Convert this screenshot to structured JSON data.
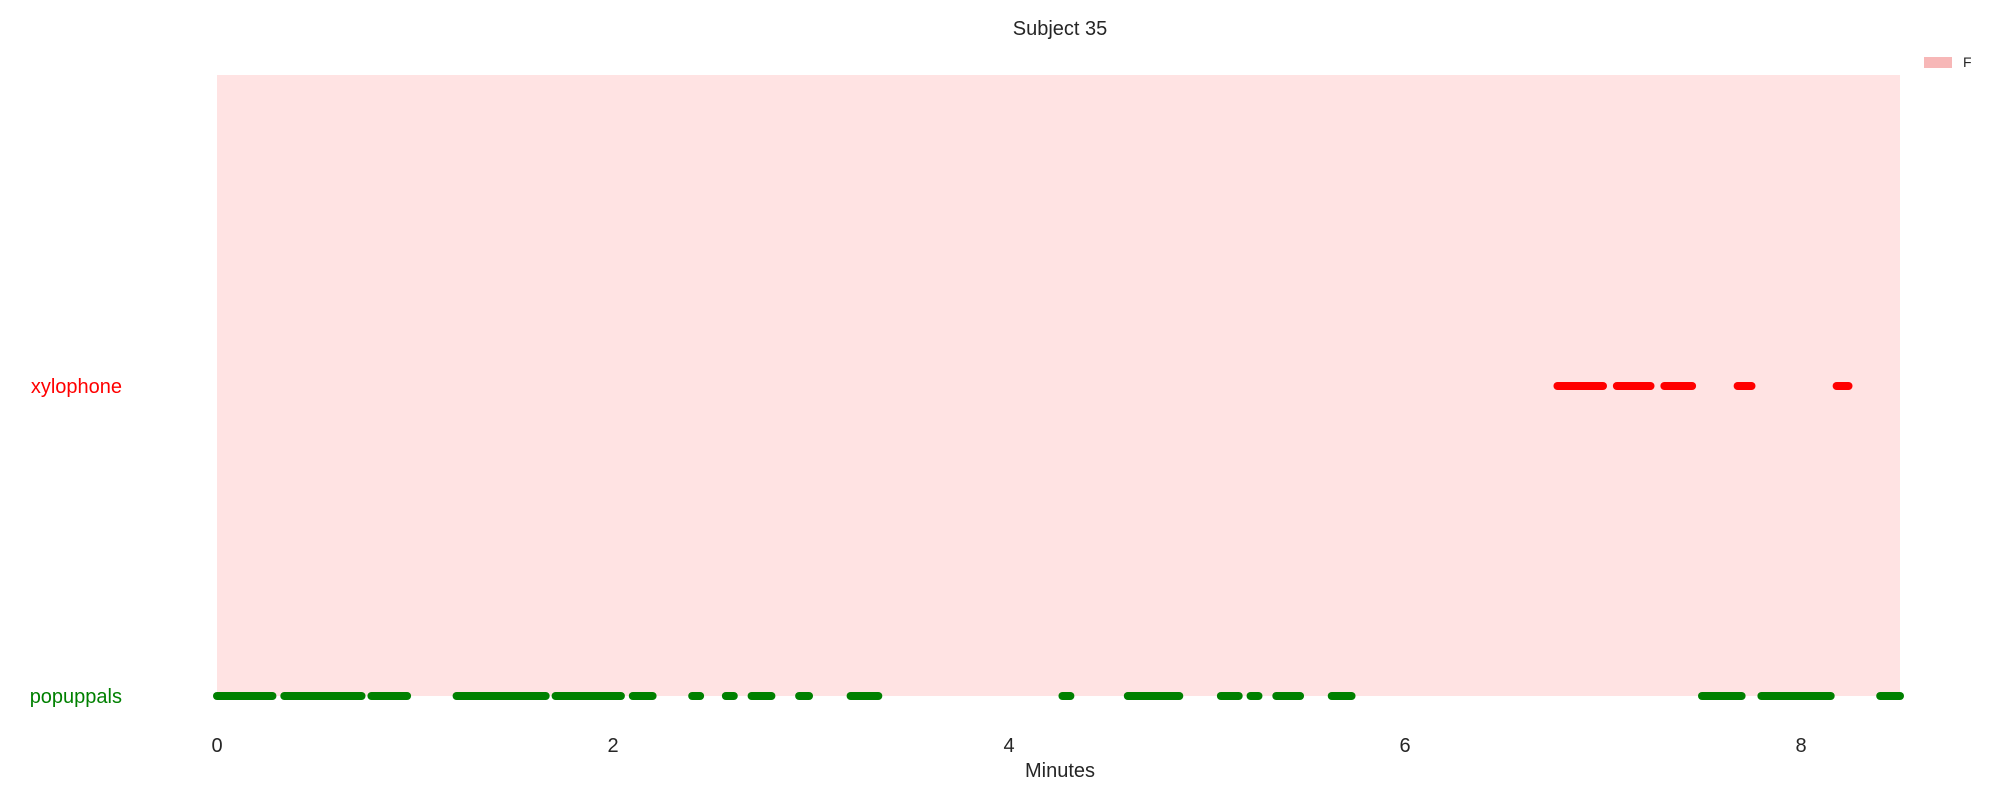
{
  "chart_data": {
    "type": "timeline",
    "title": "Subject 35",
    "xlabel": "Minutes",
    "ylabel": "",
    "xlim": [
      0,
      8.5
    ],
    "xticks": [
      0,
      2,
      4,
      6,
      8
    ],
    "background_span": {
      "label": "F",
      "start": 0,
      "end": 8.5,
      "color": "#ffe3e3",
      "legend_color": "#f7b7b7"
    },
    "legend": {
      "entries": [
        "F"
      ],
      "placement": "top-right"
    },
    "grid": false,
    "rows": [
      {
        "label": "xylophone",
        "color": "#ff0000",
        "segments": [
          [
            6.77,
            7.0
          ],
          [
            7.07,
            7.24
          ],
          [
            7.31,
            7.45
          ],
          [
            7.68,
            7.75
          ],
          [
            8.18,
            8.24
          ]
        ]
      },
      {
        "label": "popuppals",
        "color": "#008000",
        "segments": [
          [
            0.0,
            0.28
          ],
          [
            0.34,
            0.73
          ],
          [
            0.78,
            0.96
          ],
          [
            1.21,
            1.66
          ],
          [
            1.71,
            2.04
          ],
          [
            2.1,
            2.2
          ],
          [
            2.4,
            2.44
          ],
          [
            2.57,
            2.61
          ],
          [
            2.7,
            2.8
          ],
          [
            2.94,
            2.99
          ],
          [
            3.2,
            3.34
          ],
          [
            4.27,
            4.31
          ],
          [
            4.6,
            4.86
          ],
          [
            5.07,
            5.16
          ],
          [
            5.22,
            5.26
          ],
          [
            5.35,
            5.47
          ],
          [
            5.63,
            5.73
          ],
          [
            7.5,
            7.7
          ],
          [
            7.8,
            8.15
          ],
          [
            8.4,
            8.5
          ]
        ]
      }
    ]
  }
}
